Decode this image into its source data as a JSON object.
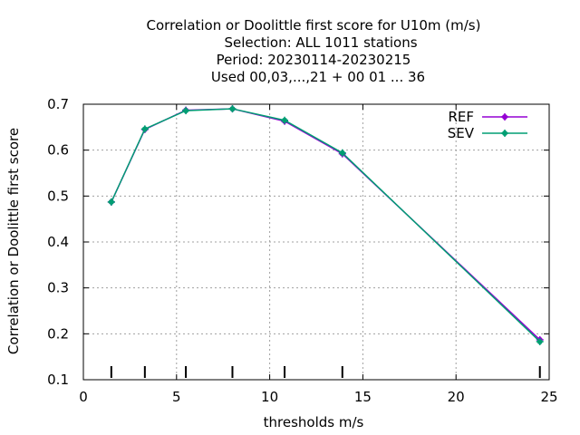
{
  "chart_data": {
    "type": "line",
    "title_lines": [
      "Correlation or Doolittle first score  for U10m (m/s)",
      "Selection: ALL   1011 stations",
      "Period: 20230114-20230215",
      "Used  00,03,...,21  + 00 01 ... 36"
    ],
    "xlabel": "thresholds m/s",
    "ylabel": "Correlation or Doolittle first score",
    "xlim": [
      0,
      25
    ],
    "ylim": [
      0.1,
      0.7
    ],
    "xticks": [
      0,
      5,
      10,
      15,
      20,
      25
    ],
    "yticks": [
      0.1,
      0.2,
      0.3,
      0.4,
      0.5,
      0.6,
      0.7
    ],
    "xtick_labels": [
      "0",
      "5",
      "10",
      "15",
      "20",
      "25"
    ],
    "ytick_labels": [
      "0.1",
      "0.2",
      "0.3",
      "0.4",
      "0.5",
      "0.6",
      "0.7"
    ],
    "grid": true,
    "legend_position": "top-right",
    "threshold_marks": [
      1.5,
      3.3,
      5.5,
      8.0,
      10.8,
      13.9,
      24.5
    ],
    "series": [
      {
        "name": "REF",
        "color": "#9400d3",
        "x": [
          1.5,
          3.3,
          5.5,
          8.0,
          10.8,
          13.9,
          24.5
        ],
        "y": [
          0.487,
          0.645,
          0.687,
          0.69,
          0.663,
          0.592,
          0.187
        ]
      },
      {
        "name": "SEV",
        "color": "#009e73",
        "x": [
          1.5,
          3.3,
          5.5,
          8.0,
          10.8,
          13.9,
          24.5
        ],
        "y": [
          0.487,
          0.646,
          0.686,
          0.69,
          0.665,
          0.594,
          0.183
        ]
      }
    ]
  }
}
